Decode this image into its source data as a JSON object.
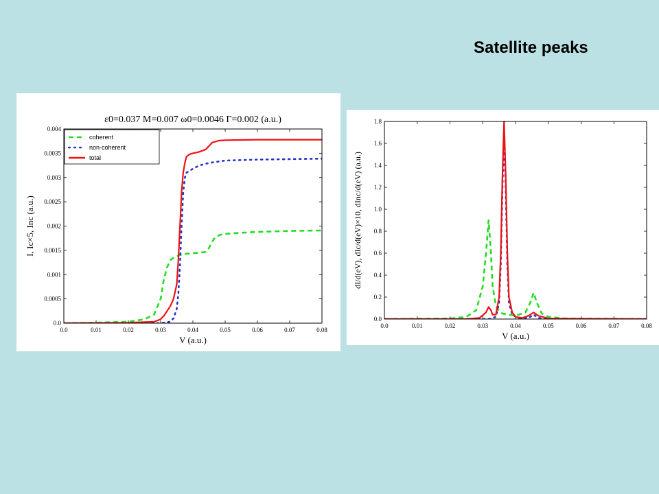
{
  "slide": {
    "title": "Satellite peaks"
  },
  "chart_data": [
    {
      "type": "line",
      "title": "ε0=0.037 M=0.007 ω0=0.0046 Γ=0.002 (a.u.)",
      "xlabel": "V (a.u.)",
      "ylabel": "I, Ic×5, Inc (a.u.)",
      "xlim": [
        0,
        0.08
      ],
      "ylim": [
        0,
        0.004
      ],
      "x_ticks": [
        "0.0",
        "0.01",
        "0.02",
        "0.03",
        "0.04",
        "0.05",
        "0.06",
        "0.07",
        "0.08"
      ],
      "y_ticks": [
        "0.0",
        "0.0005",
        "0.001",
        "0.0015",
        "0.002",
        "0.0025",
        "0.003",
        "0.0035",
        "0.004"
      ],
      "legend_position": "top-left",
      "series": [
        {
          "name": "coherent",
          "color": "#22dd22",
          "style": "dashed",
          "points": [
            [
              0,
              0
            ],
            [
              0.01,
              1e-05
            ],
            [
              0.02,
              3e-05
            ],
            [
              0.025,
              8e-05
            ],
            [
              0.028,
              0.00018
            ],
            [
              0.03,
              0.0005
            ],
            [
              0.031,
              0.0009
            ],
            [
              0.032,
              0.00115
            ],
            [
              0.033,
              0.0013
            ],
            [
              0.0345,
              0.00137
            ],
            [
              0.036,
              0.0014
            ],
            [
              0.038,
              0.00143
            ],
            [
              0.04,
              0.00144
            ],
            [
              0.042,
              0.00145
            ],
            [
              0.044,
              0.00147
            ],
            [
              0.045,
              0.00155
            ],
            [
              0.046,
              0.00168
            ],
            [
              0.047,
              0.00178
            ],
            [
              0.049,
              0.00183
            ],
            [
              0.052,
              0.00185
            ],
            [
              0.06,
              0.00188
            ],
            [
              0.07,
              0.0019
            ],
            [
              0.08,
              0.00191
            ]
          ]
        },
        {
          "name": "non-coherent",
          "color": "#2233cc",
          "style": "dotted",
          "points": [
            [
              0,
              0
            ],
            [
              0.03,
              0
            ],
            [
              0.033,
              3e-05
            ],
            [
              0.034,
              0.0001
            ],
            [
              0.035,
              0.0003
            ],
            [
              0.0355,
              0.0006
            ],
            [
              0.036,
              0.0012
            ],
            [
              0.0365,
              0.002
            ],
            [
              0.037,
              0.0027
            ],
            [
              0.0375,
              0.003
            ],
            [
              0.038,
              0.0031
            ],
            [
              0.04,
              0.00318
            ],
            [
              0.042,
              0.00325
            ],
            [
              0.045,
              0.0033
            ],
            [
              0.05,
              0.00335
            ],
            [
              0.06,
              0.00337
            ],
            [
              0.08,
              0.00339
            ]
          ]
        },
        {
          "name": "total",
          "color": "#ee1111",
          "style": "solid",
          "points": [
            [
              0,
              0
            ],
            [
              0.02,
              1e-05
            ],
            [
              0.028,
              3e-05
            ],
            [
              0.03,
              8e-05
            ],
            [
              0.031,
              0.00015
            ],
            [
              0.032,
              0.00025
            ],
            [
              0.033,
              0.00035
            ],
            [
              0.034,
              0.0005
            ],
            [
              0.035,
              0.0008
            ],
            [
              0.0355,
              0.0013
            ],
            [
              0.036,
              0.002
            ],
            [
              0.0365,
              0.0027
            ],
            [
              0.037,
              0.0031
            ],
            [
              0.0375,
              0.0033
            ],
            [
              0.038,
              0.00343
            ],
            [
              0.039,
              0.00348
            ],
            [
              0.04,
              0.0035
            ],
            [
              0.042,
              0.00353
            ],
            [
              0.044,
              0.00358
            ],
            [
              0.045,
              0.00365
            ],
            [
              0.046,
              0.00372
            ],
            [
              0.048,
              0.00376
            ],
            [
              0.05,
              0.00377
            ],
            [
              0.06,
              0.00378
            ],
            [
              0.08,
              0.00378
            ]
          ]
        }
      ]
    },
    {
      "type": "line",
      "title": "",
      "xlabel": "V (a.u.)",
      "ylabel": "dI/d(eV), dIc/d(eV)×10, dInc/d(eV) (a.u.)",
      "xlim": [
        0,
        0.08
      ],
      "ylim": [
        0,
        1.8
      ],
      "x_ticks": [
        "0.0",
        "0.01",
        "0.02",
        "0.03",
        "0.04",
        "0.05",
        "0.06",
        "0.07",
        "0.08"
      ],
      "y_ticks": [
        "0.0",
        "0.2",
        "0.4",
        "0.6",
        "0.8",
        "1.0",
        "1.2",
        "1.4",
        "1.6",
        "1.8"
      ],
      "series": [
        {
          "name": "coherent",
          "color": "#22dd22",
          "style": "dashed",
          "points": [
            [
              0,
              0
            ],
            [
              0.02,
              0.005
            ],
            [
              0.025,
              0.02
            ],
            [
              0.028,
              0.08
            ],
            [
              0.03,
              0.3
            ],
            [
              0.031,
              0.6
            ],
            [
              0.0318,
              0.9
            ],
            [
              0.0325,
              0.6
            ],
            [
              0.033,
              0.3
            ],
            [
              0.034,
              0.12
            ],
            [
              0.035,
              0.07
            ],
            [
              0.036,
              0.05
            ],
            [
              0.038,
              0.04
            ],
            [
              0.04,
              0.03
            ],
            [
              0.043,
              0.06
            ],
            [
              0.0445,
              0.15
            ],
            [
              0.0455,
              0.24
            ],
            [
              0.0465,
              0.15
            ],
            [
              0.048,
              0.05
            ],
            [
              0.05,
              0.02
            ],
            [
              0.055,
              0.005
            ],
            [
              0.08,
              0
            ]
          ]
        },
        {
          "name": "non-coherent",
          "color": "#2233cc",
          "style": "dotted",
          "points": [
            [
              0,
              0
            ],
            [
              0.032,
              0
            ],
            [
              0.034,
              0.02
            ],
            [
              0.035,
              0.15
            ],
            [
              0.0355,
              0.5
            ],
            [
              0.036,
              1.2
            ],
            [
              0.0365,
              1.68
            ],
            [
              0.037,
              1.2
            ],
            [
              0.0375,
              0.5
            ],
            [
              0.038,
              0.15
            ],
            [
              0.039,
              0.04
            ],
            [
              0.041,
              0.005
            ],
            [
              0.044,
              0.01
            ],
            [
              0.0455,
              0.04
            ],
            [
              0.047,
              0.01
            ],
            [
              0.05,
              0
            ],
            [
              0.08,
              0
            ]
          ]
        },
        {
          "name": "total",
          "color": "#ee1111",
          "style": "solid",
          "points": [
            [
              0,
              0
            ],
            [
              0.025,
              0
            ],
            [
              0.029,
              0.01
            ],
            [
              0.031,
              0.06
            ],
            [
              0.0318,
              0.11
            ],
            [
              0.0325,
              0.08
            ],
            [
              0.033,
              0.04
            ],
            [
              0.034,
              0.04
            ],
            [
              0.035,
              0.2
            ],
            [
              0.0355,
              0.6
            ],
            [
              0.036,
              1.3
            ],
            [
              0.0365,
              1.8
            ],
            [
              0.037,
              1.3
            ],
            [
              0.0375,
              0.6
            ],
            [
              0.038,
              0.2
            ],
            [
              0.039,
              0.06
            ],
            [
              0.04,
              0.02
            ],
            [
              0.042,
              0.01
            ],
            [
              0.044,
              0.03
            ],
            [
              0.0455,
              0.06
            ],
            [
              0.047,
              0.03
            ],
            [
              0.05,
              0.005
            ],
            [
              0.08,
              0
            ]
          ]
        }
      ]
    }
  ]
}
